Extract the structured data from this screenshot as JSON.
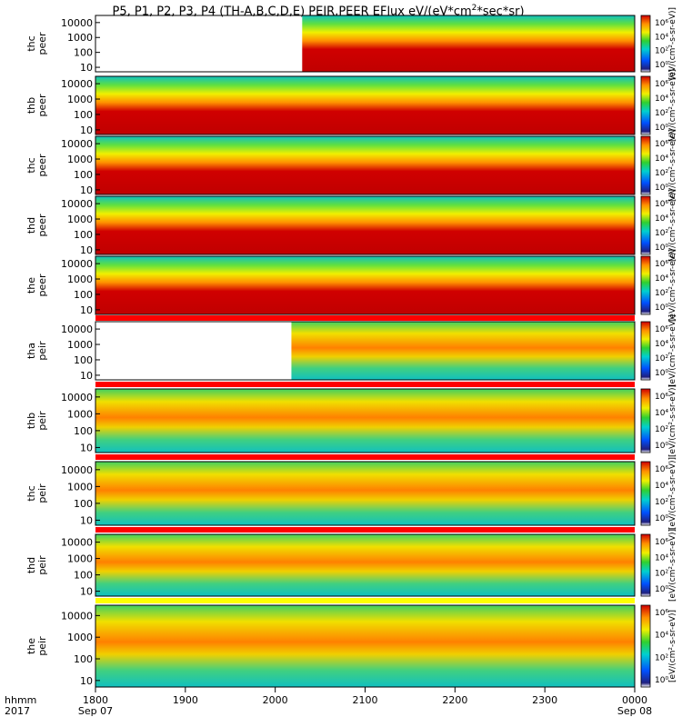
{
  "title_main": "P5, P1, P2, P3, P4 (TH-A,B,C,D,E) PEIR,PEER EFlux eV/(eV*cm",
  "title_exp": "2",
  "title_tail": "*sec*sr)",
  "panels": [
    {
      "l1": "thc",
      "l2": "peer",
      "start": 2030
    },
    {
      "l1": "thb",
      "l2": "peer",
      "start": 1800
    },
    {
      "l1": "thc",
      "l2": "peer",
      "start": 1800
    },
    {
      "l1": "thd",
      "l2": "peer",
      "start": 1800
    },
    {
      "l1": "the",
      "l2": "peer",
      "start": 1800
    },
    {
      "l1": "tha",
      "l2": "peir",
      "start": 2018
    },
    {
      "l1": "thb",
      "l2": "peir",
      "start": 1800
    },
    {
      "l1": "thc",
      "l2": "peir",
      "start": 1800
    },
    {
      "l1": "thd",
      "l2": "peir",
      "start": 1800
    },
    {
      "l1": "the",
      "l2": "peir",
      "start": 1800
    }
  ],
  "y_ticks": [
    "10000",
    "1000",
    "100",
    "10"
  ],
  "x_ticks": [
    {
      "value": 1800,
      "label": "1800",
      "sub": "Sep 07"
    },
    {
      "value": 1900,
      "label": "1900",
      "sub": ""
    },
    {
      "value": 2000,
      "label": "2000",
      "sub": ""
    },
    {
      "value": 2100,
      "label": "2100",
      "sub": ""
    },
    {
      "value": 2200,
      "label": "2200",
      "sub": ""
    },
    {
      "value": 2300,
      "label": "2300",
      "sub": ""
    },
    {
      "value": 2400,
      "label": "0000",
      "sub": "Sep 08"
    }
  ],
  "x_axis_label1": "hhmm",
  "x_axis_label2": "2017",
  "colorbar_label": "[eV/(cm²-s-sr-eV)]",
  "colorbar_ticks": [
    "10⁶",
    "10⁴",
    "10²",
    "10⁰"
  ],
  "chart_data": {
    "type": "heatmap",
    "title": "P5, P1, P2, P3, P4 (TH-A,B,C,D,E) PEIR,PEER EFlux eV/(eV*cm2*sec*sr)",
    "x_range": [
      "1800 Sep 07",
      "0000 Sep 08"
    ],
    "y_scale": "log",
    "y_range": [
      5,
      30000
    ],
    "series": [
      {
        "name": "thc peer",
        "data_start": "2030"
      },
      {
        "name": "thb peer",
        "data_start": "1800"
      },
      {
        "name": "thc peer",
        "data_start": "1800"
      },
      {
        "name": "thd peer",
        "data_start": "1800"
      },
      {
        "name": "the peer",
        "data_start": "1800"
      },
      {
        "name": "tha peir",
        "data_start": "2018"
      },
      {
        "name": "thb peir",
        "data_start": "1800"
      },
      {
        "name": "thc peir",
        "data_start": "1800"
      },
      {
        "name": "thd peir",
        "data_start": "1800"
      },
      {
        "name": "the peir",
        "data_start": "1800"
      }
    ],
    "color_scale": "rainbow, blue (low) to red (high), log flux 10^0 to 10^6+",
    "colors": {
      "high": "#d00000",
      "mid": "#ffa000",
      "low": "#00c0c0",
      "min": "#2020c0"
    }
  }
}
